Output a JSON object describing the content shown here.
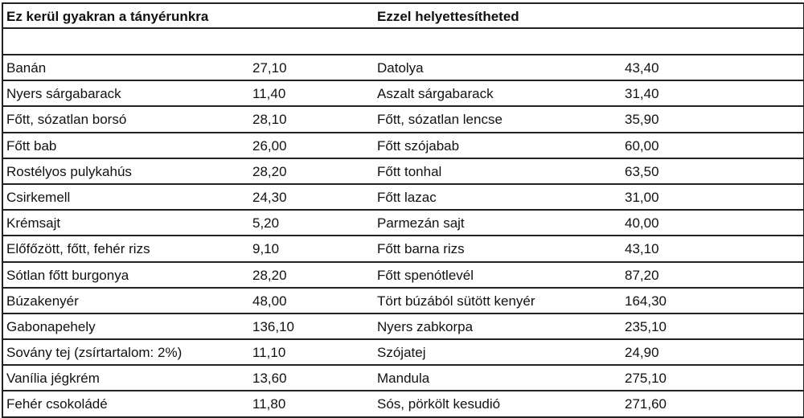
{
  "headers": {
    "left": "Ez kerül gyakran a tányérunkra",
    "right": "Ezzel helyettesítheted"
  },
  "rows": [
    {
      "food": "Banán",
      "value": "27,10",
      "alt": "Datolya",
      "alt_value": "43,40"
    },
    {
      "food": "Nyers sárgabarack",
      "value": "11,40",
      "alt": "Aszalt sárgabarack",
      "alt_value": "31,40"
    },
    {
      "food": "Főtt, sózatlan borsó",
      "value": "28,10",
      "alt": "Főtt, sózatlan lencse",
      "alt_value": "35,90"
    },
    {
      "food": "Főtt bab",
      "value": "26,00",
      "alt": "Főtt szójabab",
      "alt_value": "60,00"
    },
    {
      "food": "Rostélyos pulykahús",
      "value": "28,20",
      "alt": "Főtt tonhal",
      "alt_value": "63,50"
    },
    {
      "food": "Csirkemell",
      "value": "24,30",
      "alt": "Főtt lazac",
      "alt_value": "31,00"
    },
    {
      "food": "Krémsajt",
      "value": "5,20",
      "alt": "Parmezán sajt",
      "alt_value": "40,00"
    },
    {
      "food": "Előfőzött, főtt, fehér rizs",
      "value": "9,10",
      "alt": "Főtt barna rizs",
      "alt_value": "43,10"
    },
    {
      "food": "Sótlan főtt burgonya",
      "value": "28,20",
      "alt": "Főtt spenótlevél",
      "alt_value": "87,20"
    },
    {
      "food": "Búzakenyér",
      "value": "48,00",
      "alt": "Tört búzából sütött kenyér",
      "alt_value": "164,30"
    },
    {
      "food": "Gabonapehely",
      "value": "136,10",
      "alt": "Nyers zabkorpa",
      "alt_value": "235,10"
    },
    {
      "food": "Sovány tej (zsírtartalom: 2%)",
      "value": "11,10",
      "alt": "Szójatej",
      "alt_value": "24,90"
    },
    {
      "food": "Vanília jégkrém",
      "value": "13,60",
      "alt": "Mandula",
      "alt_value": "275,10"
    },
    {
      "food": "Fehér csokoládé",
      "value": "11,80",
      "alt": "Sós, pörkölt kesudió",
      "alt_value": "271,60"
    }
  ]
}
